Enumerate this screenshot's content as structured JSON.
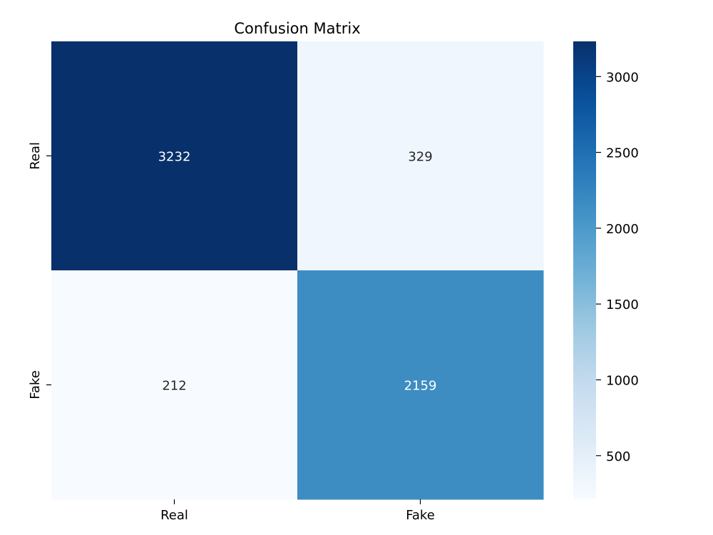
{
  "chart_data": {
    "type": "heatmap",
    "title": "Confusion Matrix",
    "xlabel": "",
    "ylabel": "",
    "x_categories": [
      "Real",
      "Fake"
    ],
    "y_categories": [
      "Real",
      "Fake"
    ],
    "values": [
      [
        3232,
        329
      ],
      [
        212,
        2159
      ]
    ],
    "colormap": "Blues",
    "color_range": [
      212,
      3232
    ],
    "colorbar": {
      "ticks": [
        500,
        1000,
        1500,
        2000,
        2500,
        3000
      ],
      "tick_labels": [
        "500",
        "1000",
        "1500",
        "2000",
        "2500",
        "3000"
      ]
    },
    "annotation_colors": {
      "on_dark": "#ffffff",
      "on_light": "#262626"
    },
    "grid": false
  }
}
